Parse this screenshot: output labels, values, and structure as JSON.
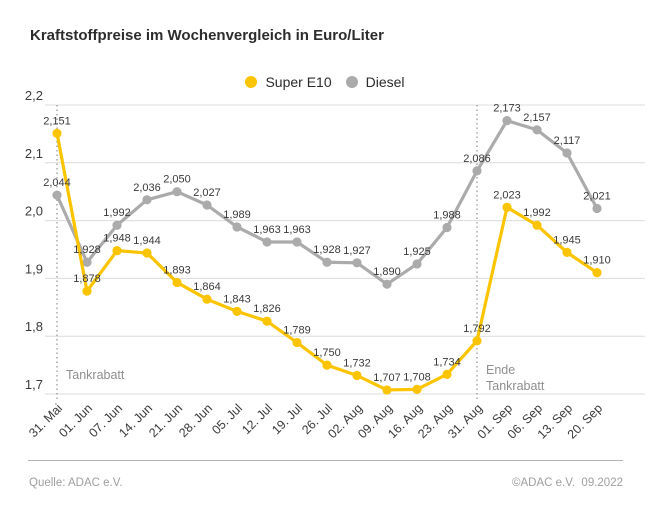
{
  "chart": {
    "title": "Kraftstoffpreise im Wochenvergleich in Euro/Liter"
  },
  "chart_data": {
    "type": "line",
    "title": "Kraftstoffpreise im Wochenvergleich in Euro/Liter",
    "categories": [
      "31. Mai",
      "01. Jun",
      "07. Jun",
      "14. Jun",
      "21. Jun",
      "28. Jun",
      "05. Jul",
      "12. Jul",
      "19. Jul",
      "26. Jul",
      "02. Aug",
      "09. Aug",
      "16. Aug",
      "23. Aug",
      "31. Aug",
      "01. Sep",
      "06. Sep",
      "13. Sep",
      "20. Sep"
    ],
    "series": [
      {
        "name": "Super E10",
        "color": "#fbc400",
        "values": [
          2.151,
          1.878,
          1.948,
          1.944,
          1.893,
          1.864,
          1.843,
          1.826,
          1.789,
          1.75,
          1.732,
          1.707,
          1.708,
          1.734,
          1.792,
          2.023,
          1.992,
          1.945,
          1.91
        ]
      },
      {
        "name": "Diesel",
        "color": "#ababab",
        "values": [
          2.044,
          1.928,
          1.992,
          2.036,
          2.05,
          2.027,
          1.989,
          1.963,
          1.963,
          1.928,
          1.927,
          1.89,
          1.925,
          1.988,
          2.086,
          2.173,
          2.157,
          2.117,
          2.021
        ]
      }
    ],
    "ylim": [
      1.7,
      2.2
    ],
    "yticks": [
      2.2,
      2.1,
      2.0,
      1.9,
      1.8,
      1.7
    ],
    "grid": "horizontal",
    "legend_position": "top-center",
    "decimal_separator": ",",
    "annotations": [
      {
        "category_index": 0,
        "lines": [
          "Tankrabatt"
        ]
      },
      {
        "category_index": 14,
        "lines": [
          "Ende",
          "Tankrabatt"
        ]
      }
    ]
  },
  "footer": {
    "source": "Quelle: ADAC e.V.",
    "copyright": "©ADAC e.V.  09.2022"
  }
}
